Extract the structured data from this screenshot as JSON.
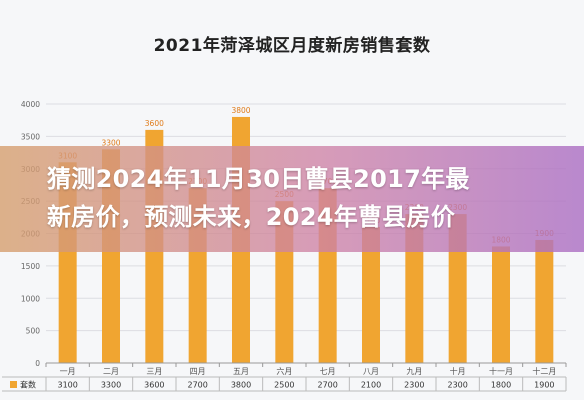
{
  "chart_data": {
    "type": "bar",
    "title": "2021年菏泽城区月度新房销售套数",
    "categories": [
      "一月",
      "二月",
      "三月",
      "四月",
      "五月",
      "六月",
      "七月",
      "八月",
      "九月",
      "十月",
      "十一月",
      "十二月"
    ],
    "series": [
      {
        "name": "套数",
        "values": [
          3100,
          3300,
          3600,
          2700,
          3800,
          2500,
          2700,
          2100,
          2300,
          2300,
          1800,
          1900
        ]
      }
    ],
    "ylim": [
      0,
      4000
    ],
    "yticks": [
      0,
      500,
      1000,
      1500,
      2000,
      2500,
      3000,
      3500,
      4000
    ],
    "bar_color": "#f0a531",
    "label_color": "#e07c1a",
    "data_table": true
  },
  "overlay": {
    "line1": "猜测2024年11月30日曹县2017年最",
    "line2": "新房价，预测未来，2024年曹县房价"
  }
}
